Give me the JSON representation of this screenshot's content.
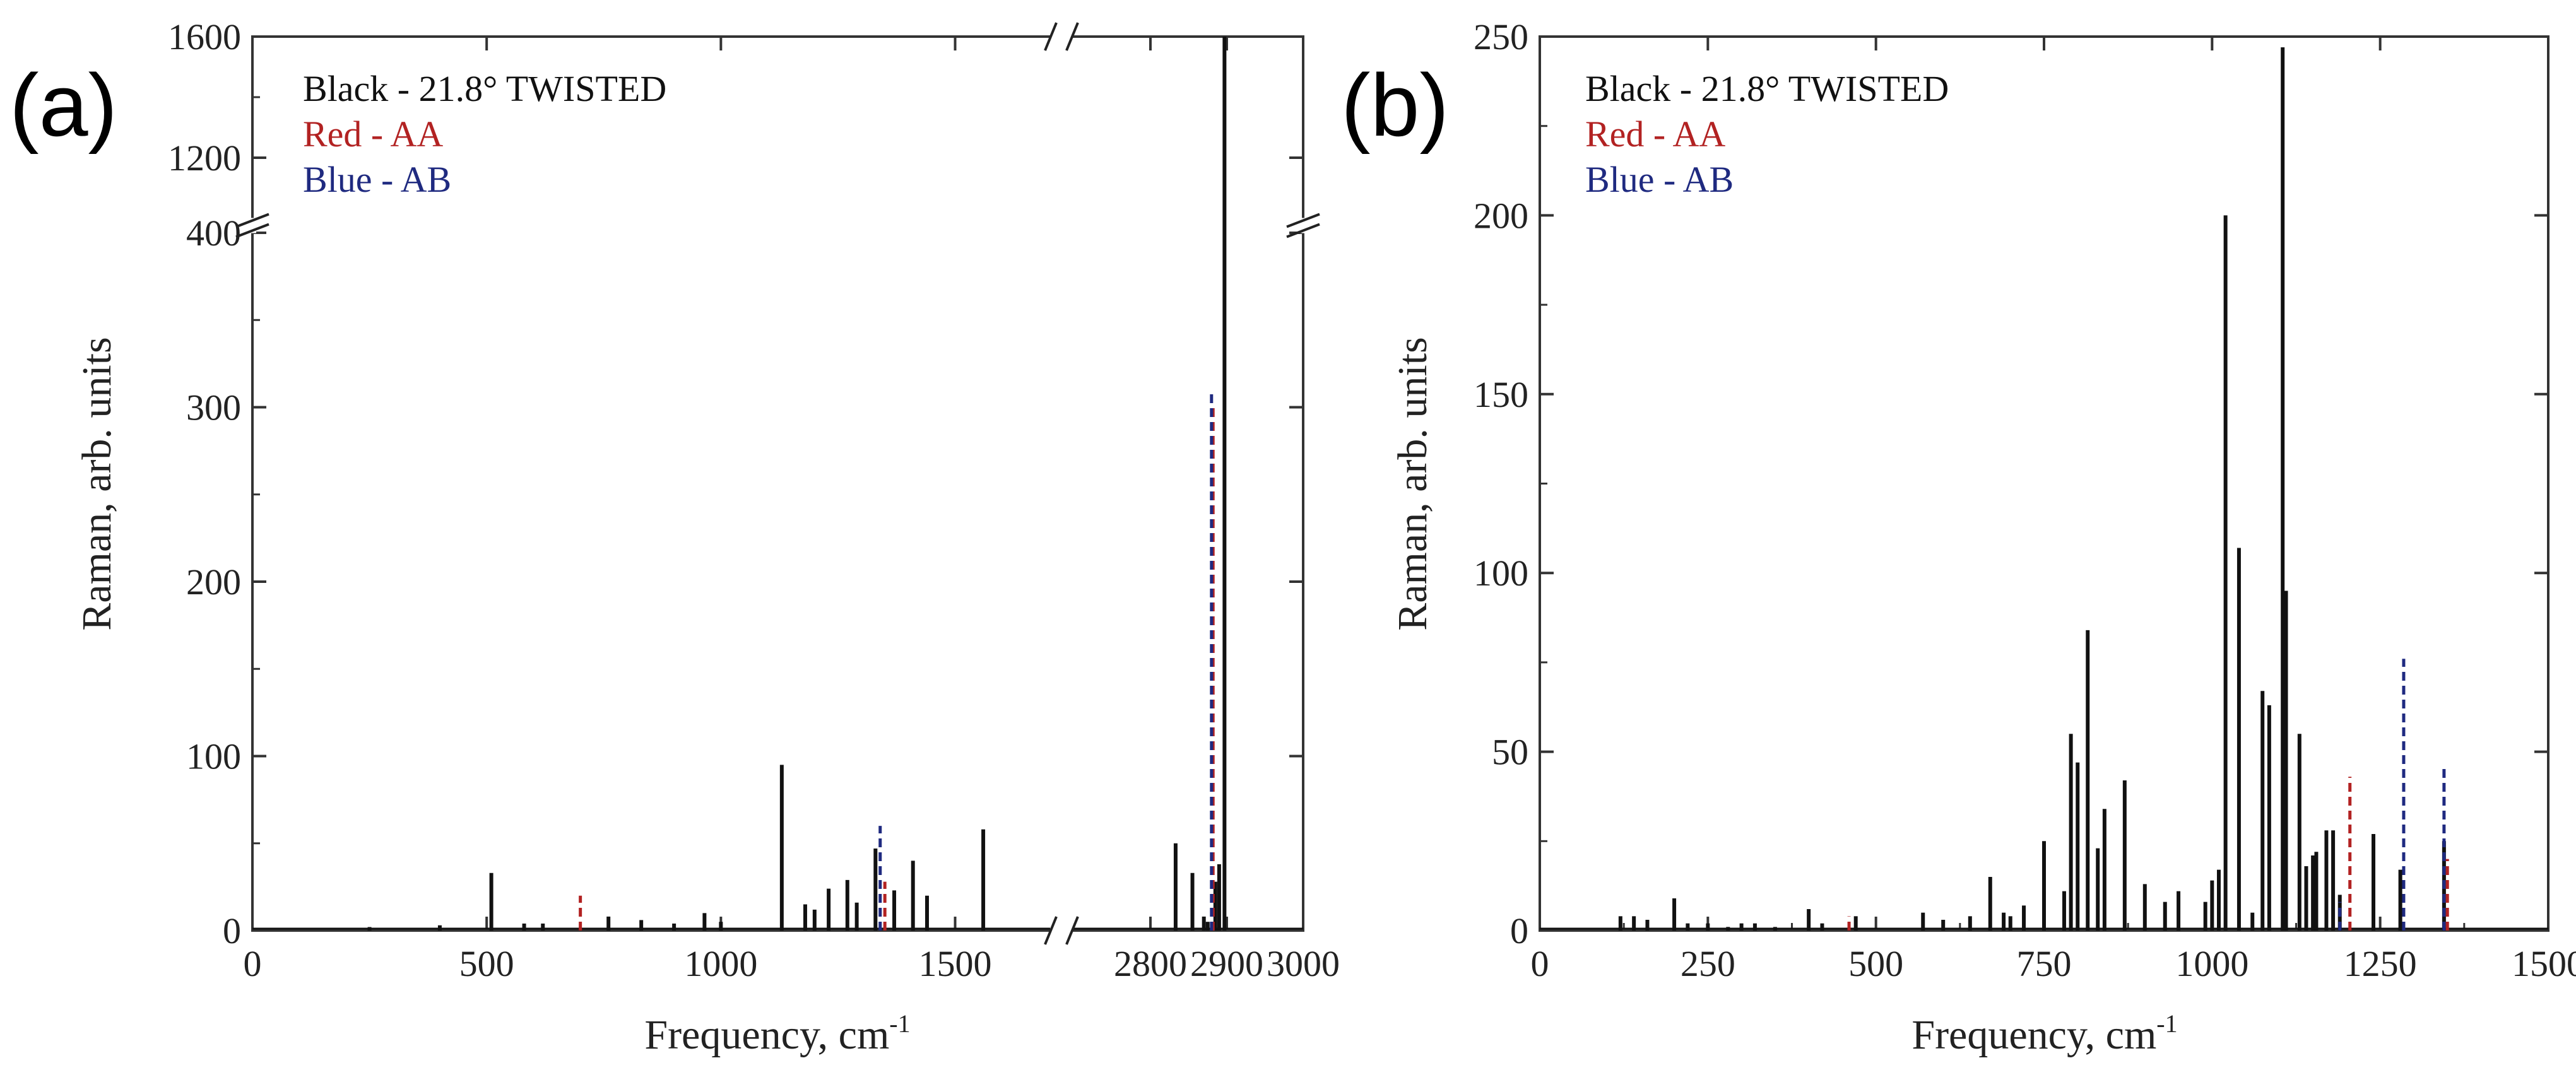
{
  "colors": {
    "black": "#111111",
    "red": "#b22222",
    "blue": "#1f2a80"
  },
  "chart_data": [
    {
      "type": "bar",
      "panel": "(a)",
      "xlabel": "Frequency, cm",
      "xlabel_sup": "-1",
      "ylabel": "Raman, arb. units",
      "legend": [
        {
          "text": "Black - 21.8° TWISTED",
          "color": "black"
        },
        {
          "text": "Red - AA",
          "color": "red"
        },
        {
          "text": "Blue - AB",
          "color": "blue"
        }
      ],
      "x_segments": [
        {
          "range": [
            0,
            1700
          ],
          "ticks": [
            {
              "v": 0,
              "label": "0"
            },
            {
              "v": 500,
              "label": "500"
            },
            {
              "v": 1000,
              "label": "1000"
            },
            {
              "v": 1500,
              "label": "1500"
            }
          ]
        },
        {
          "range": [
            2700,
            3000
          ],
          "ticks": [
            {
              "v": 2800,
              "label": "2800"
            },
            {
              "v": 2900,
              "label": "2900"
            },
            {
              "v": 3000,
              "label": "3000"
            }
          ]
        }
      ],
      "y_segments": [
        {
          "range": [
            0,
            400
          ],
          "ticks": [
            {
              "v": 0,
              "label": "0"
            },
            {
              "v": 100,
              "label": "100"
            },
            {
              "v": 200,
              "label": "200"
            },
            {
              "v": 300,
              "label": "300"
            },
            {
              "v": 400,
              "label": "400"
            }
          ]
        },
        {
          "range": [
            1000,
            1600
          ],
          "ticks": [
            {
              "v": 1200,
              "label": "1200"
            },
            {
              "v": 1600,
              "label": "1600"
            }
          ]
        }
      ],
      "series": [
        {
          "name": "Black - 21.8° TWISTED",
          "color": "black",
          "style": "solid",
          "x": [
            250,
            400,
            510,
            580,
            620,
            760,
            830,
            900,
            965,
            1000,
            1130,
            1180,
            1200,
            1230,
            1270,
            1290,
            1330,
            1370,
            1410,
            1440,
            1560,
            2833,
            2855,
            2870,
            2875,
            2885,
            2890,
            2897
          ],
          "y": [
            2,
            3,
            33,
            4,
            4,
            8,
            6,
            4,
            10,
            5,
            95,
            15,
            12,
            24,
            29,
            16,
            47,
            23,
            40,
            20,
            58,
            50,
            33,
            8,
            5,
            28,
            38,
            1600
          ]
        },
        {
          "name": "Red - AA",
          "color": "red",
          "style": "dashed",
          "x": [
            700,
            1350,
            2882
          ],
          "y": [
            20,
            28,
            300
          ]
        },
        {
          "name": "Blue - AB",
          "color": "blue",
          "style": "dashed",
          "x": [
            1340,
            2880
          ],
          "y": [
            60,
            310
          ]
        }
      ]
    },
    {
      "type": "bar",
      "panel": "(b)",
      "xlabel": "Frequency, cm",
      "xlabel_sup": "-1",
      "ylabel": "Raman, arb. units",
      "xlim": [
        0,
        1500
      ],
      "ylim": [
        0,
        250
      ],
      "xticks": [
        {
          "v": 0,
          "label": "0"
        },
        {
          "v": 250,
          "label": "250"
        },
        {
          "v": 500,
          "label": "500"
        },
        {
          "v": 750,
          "label": "750"
        },
        {
          "v": 1000,
          "label": "1000"
        },
        {
          "v": 1250,
          "label": "1250"
        },
        {
          "v": 1500,
          "label": "1500"
        }
      ],
      "yticks": [
        {
          "v": 0,
          "label": "0"
        },
        {
          "v": 50,
          "label": "50"
        },
        {
          "v": 100,
          "label": "100"
        },
        {
          "v": 150,
          "label": "150"
        },
        {
          "v": 200,
          "label": "200"
        },
        {
          "v": 250,
          "label": "250"
        }
      ],
      "legend": [
        {
          "text": "Black - 21.8° TWISTED",
          "color": "black"
        },
        {
          "text": "Red - AA",
          "color": "red"
        },
        {
          "text": "Blue - AB",
          "color": "blue"
        }
      ],
      "series": [
        {
          "name": "Black - 21.8° TWISTED",
          "color": "black",
          "style": "solid",
          "x": [
            120,
            140,
            160,
            200,
            220,
            250,
            280,
            300,
            320,
            350,
            400,
            420,
            470,
            570,
            600,
            640,
            670,
            690,
            700,
            720,
            750,
            780,
            790,
            800,
            815,
            830,
            840,
            870,
            900,
            930,
            950,
            990,
            1000,
            1010,
            1020,
            1040,
            1060,
            1075,
            1085,
            1105,
            1110,
            1130,
            1140,
            1150,
            1155,
            1170,
            1180,
            1190,
            1240,
            1280,
            1345
          ],
          "y": [
            4,
            4,
            3,
            9,
            2,
            2,
            1,
            2,
            2,
            1,
            6,
            2,
            4,
            5,
            3,
            4,
            15,
            5,
            4,
            7,
            25,
            11,
            55,
            47,
            84,
            23,
            34,
            42,
            13,
            8,
            11,
            8,
            14,
            17,
            200,
            107,
            5,
            67,
            63,
            247,
            95,
            55,
            18,
            21,
            22,
            28,
            28,
            10,
            27,
            17,
            25
          ]
        },
        {
          "name": "Red - AA",
          "color": "red",
          "style": "dashed",
          "x": [
            460,
            1205,
            1350
          ],
          "y": [
            4,
            43,
            20
          ]
        },
        {
          "name": "Blue - AB",
          "color": "blue",
          "style": "dashed",
          "x": [
            1190,
            1285,
            1345
          ],
          "y": [
            8,
            76,
            46
          ]
        }
      ]
    }
  ]
}
